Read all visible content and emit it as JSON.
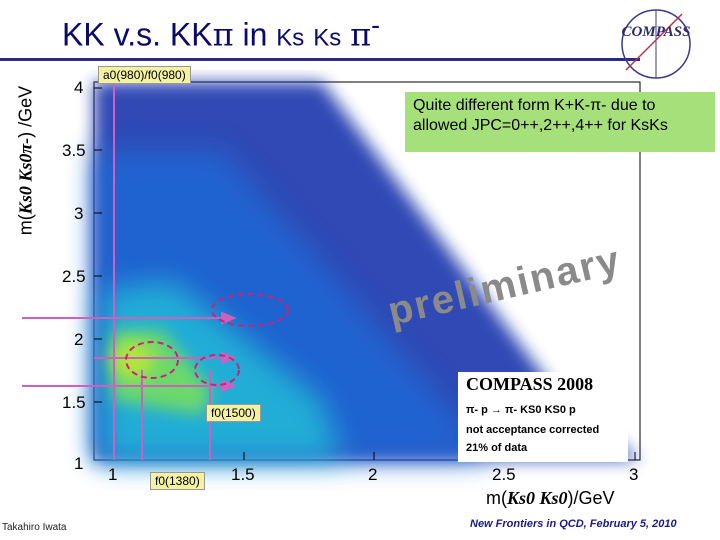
{
  "title": {
    "kk": "KK",
    "vs": "v.s.",
    "kkpi": "KK",
    "pi1": "π",
    "in": "in",
    "ks1": "Ks",
    "ks2": "Ks",
    "pi2": "π",
    "minus": "-"
  },
  "logo": {
    "text": "COMPASS"
  },
  "y_axis": {
    "label_prefix": "m(",
    "label_math": "Ks0 Ks0π-",
    "label_suffix": ") /GeV",
    "ticks": [
      "4",
      "3.5",
      "3",
      "2.5",
      "2",
      "1.5",
      "1"
    ]
  },
  "x_axis": {
    "label_prefix": "m(",
    "label_math": "Ks0 Ks0",
    "label_suffix": ")/GeV",
    "ticks": [
      "1",
      "1.5",
      "2",
      "2.5",
      "3"
    ]
  },
  "annotations": {
    "a0f0": "a0(980)/f0(980)",
    "f01500": "f0(1500)",
    "f01380": "f0(1380)"
  },
  "note": {
    "line1": "Quite different form K+K-π- due to",
    "line2": "allowed JPC=0++,2++,4++ for KsKs"
  },
  "watermark": "preliminary",
  "legend": {
    "title": "COMPASS 2008",
    "line1": "π- p → π- KS0 KS0 p",
    "line2": "not acceptance corrected",
    "line3": "21% of data"
  },
  "footer": {
    "author": "Takahiro Iwata",
    "event": "New Frontiers in QCD, February 5, 2010"
  },
  "colors": {
    "title": "#0a0a6a",
    "note_bg": "#a6e07a",
    "marker_lines": "#d060c0",
    "ellipses": "#cc2277"
  }
}
